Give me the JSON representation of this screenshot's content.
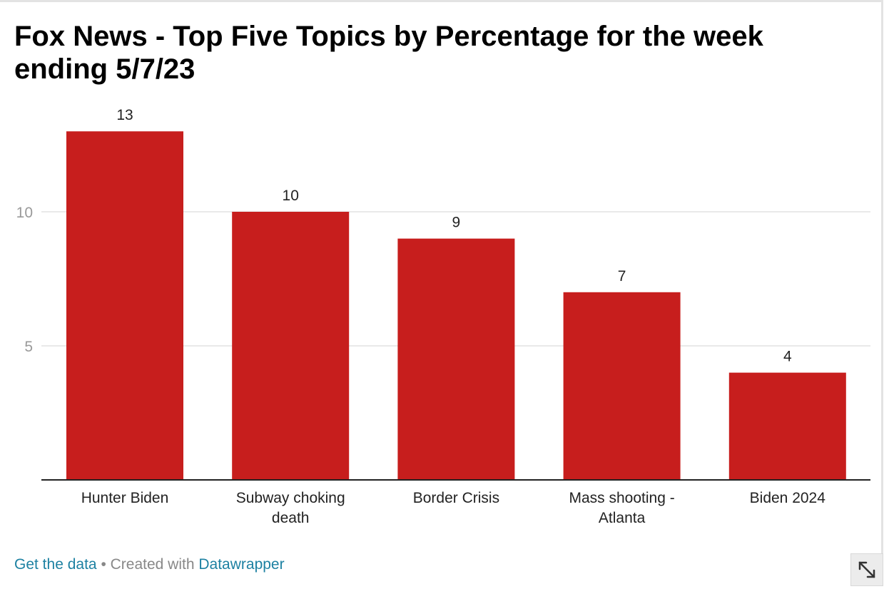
{
  "colors": {
    "bar": "#c71e1d",
    "grid": "#e2e2e2",
    "axis": "#222222",
    "tick_label": "#999999",
    "value_label": "#222222",
    "link": "#1d81a2"
  },
  "footer": {
    "get_data": "Get the data",
    "separator": "•",
    "created_with": "Created with",
    "tool": "Datawrapper"
  },
  "icons": {
    "expand": "expand-diagonal-arrows-icon"
  },
  "chart_data": {
    "type": "bar",
    "title": "Fox News - Top Five Topics by Percentage for the week ending 5/7/23",
    "categories": [
      [
        "Hunter Biden"
      ],
      [
        "Subway choking",
        "death"
      ],
      [
        "Border Crisis"
      ],
      [
        "Mass shooting -",
        "Atlanta"
      ],
      [
        "Biden 2024"
      ]
    ],
    "values": [
      13,
      10,
      9,
      7,
      4
    ],
    "y_ticks": [
      5,
      10
    ],
    "ylim": [
      0,
      13
    ],
    "grid": true,
    "legend": "none",
    "data_labels": true
  }
}
